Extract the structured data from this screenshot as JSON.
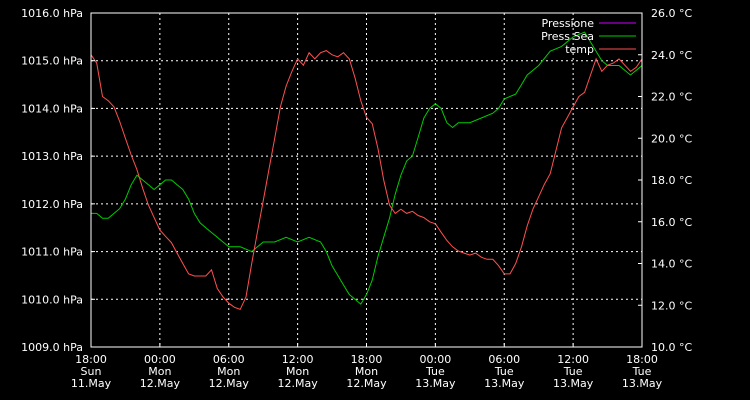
{
  "chart_data": {
    "type": "line",
    "title": "",
    "left_axis": {
      "range": [
        1009.0,
        1016.0
      ],
      "ticks": [
        1009.0,
        1010.0,
        1011.0,
        1012.0,
        1013.0,
        1014.0,
        1015.0,
        1016.0
      ],
      "tick_labels": [
        "1009.0 hPa",
        "1010.0 hPa",
        "1011.0 hPa",
        "1012.0 hPa",
        "1013.0 hPa",
        "1014.0 hPa",
        "1015.0 hPa",
        "1016.0 hPa"
      ]
    },
    "right_axis": {
      "range": [
        10.0,
        26.0
      ],
      "ticks": [
        10.0,
        12.0,
        14.0,
        16.0,
        18.0,
        20.0,
        22.0,
        24.0,
        26.0
      ],
      "tick_labels": [
        "10.0 °C",
        "12.0 °C",
        "14.0 °C",
        "16.0 °C",
        "18.0 °C",
        "20.0 °C",
        "22.0 °C",
        "24.0 °C",
        "26.0 °C"
      ]
    },
    "x_axis": {
      "range_hours": [
        0,
        48
      ],
      "ticks": [
        {
          "hours": 0,
          "time": "18:00",
          "day": "Sun",
          "date": "11.May"
        },
        {
          "hours": 6,
          "time": "00:00",
          "day": "Mon",
          "date": "12.May"
        },
        {
          "hours": 12,
          "time": "06:00",
          "day": "Mon",
          "date": "12.May"
        },
        {
          "hours": 18,
          "time": "12:00",
          "day": "Mon",
          "date": "12.May"
        },
        {
          "hours": 24,
          "time": "18:00",
          "day": "Mon",
          "date": "12.May"
        },
        {
          "hours": 30,
          "time": "00:00",
          "day": "Tue",
          "date": "13.May"
        },
        {
          "hours": 36,
          "time": "06:00",
          "day": "Tue",
          "date": "13.May"
        },
        {
          "hours": 42,
          "time": "12:00",
          "day": "Tue",
          "date": "13.May"
        },
        {
          "hours": 48,
          "time": "18:00",
          "day": "Tue",
          "date": "13.May"
        }
      ]
    },
    "grid": true,
    "legend_position": "top-right",
    "series": [
      {
        "name": "Pressione",
        "color": "#cc00ff",
        "axis": "left",
        "points": []
      },
      {
        "name": "Press Sea",
        "color": "#00cc00",
        "axis": "left",
        "points": [
          [
            0,
            1011.8
          ],
          [
            0.5,
            1011.8
          ],
          [
            1,
            1011.7
          ],
          [
            1.5,
            1011.7
          ],
          [
            2,
            1011.8
          ],
          [
            2.5,
            1011.9
          ],
          [
            3,
            1012.1
          ],
          [
            3.5,
            1012.4
          ],
          [
            4,
            1012.6
          ],
          [
            4.5,
            1012.5
          ],
          [
            5,
            1012.4
          ],
          [
            5.5,
            1012.3
          ],
          [
            6,
            1012.4
          ],
          [
            6.5,
            1012.5
          ],
          [
            7,
            1012.5
          ],
          [
            7.5,
            1012.4
          ],
          [
            8,
            1012.3
          ],
          [
            8.5,
            1012.1
          ],
          [
            9,
            1011.8
          ],
          [
            9.5,
            1011.6
          ],
          [
            10,
            1011.5
          ],
          [
            10.5,
            1011.4
          ],
          [
            11,
            1011.3
          ],
          [
            11.5,
            1011.2
          ],
          [
            12,
            1011.1
          ],
          [
            13,
            1011.1
          ],
          [
            14,
            1011.0
          ],
          [
            15,
            1011.2
          ],
          [
            16,
            1011.2
          ],
          [
            17,
            1011.3
          ],
          [
            18,
            1011.2
          ],
          [
            19,
            1011.3
          ],
          [
            20,
            1011.2
          ],
          [
            20.5,
            1011.0
          ],
          [
            21,
            1010.7
          ],
          [
            21.5,
            1010.5
          ],
          [
            22,
            1010.3
          ],
          [
            22.5,
            1010.1
          ],
          [
            23,
            1010.0
          ],
          [
            23.5,
            1009.9
          ],
          [
            24,
            1010.1
          ],
          [
            24.5,
            1010.4
          ],
          [
            25,
            1010.9
          ],
          [
            25.5,
            1011.3
          ],
          [
            26,
            1011.7
          ],
          [
            26.5,
            1012.2
          ],
          [
            27,
            1012.6
          ],
          [
            27.5,
            1012.9
          ],
          [
            28,
            1013.0
          ],
          [
            28.5,
            1013.4
          ],
          [
            29,
            1013.8
          ],
          [
            29.5,
            1014.0
          ],
          [
            30,
            1014.1
          ],
          [
            30.5,
            1014.0
          ],
          [
            31,
            1013.7
          ],
          [
            31.5,
            1013.6
          ],
          [
            32,
            1013.7
          ],
          [
            33,
            1013.7
          ],
          [
            34,
            1013.8
          ],
          [
            35,
            1013.9
          ],
          [
            35.5,
            1014.0
          ],
          [
            36,
            1014.2
          ],
          [
            37,
            1014.3
          ],
          [
            37.5,
            1014.5
          ],
          [
            38,
            1014.7
          ],
          [
            39,
            1014.9
          ],
          [
            40,
            1015.2
          ],
          [
            41,
            1015.3
          ],
          [
            42,
            1015.5
          ],
          [
            43,
            1015.6
          ],
          [
            43.5,
            1015.4
          ],
          [
            44,
            1015.2
          ],
          [
            44.5,
            1015.0
          ],
          [
            45,
            1014.9
          ],
          [
            46,
            1014.9
          ],
          [
            47,
            1014.7
          ],
          [
            47.5,
            1014.8
          ],
          [
            48,
            1014.9
          ]
        ]
      },
      {
        "name": "temp",
        "color": "#ff5050",
        "axis": "right",
        "points": [
          [
            0,
            24.0
          ],
          [
            0.5,
            23.6
          ],
          [
            1,
            22.0
          ],
          [
            1.5,
            21.8
          ],
          [
            2,
            21.5
          ],
          [
            2.5,
            20.8
          ],
          [
            3,
            20.0
          ],
          [
            3.5,
            19.2
          ],
          [
            4,
            18.5
          ],
          [
            4.5,
            17.6
          ],
          [
            5,
            16.8
          ],
          [
            5.5,
            16.2
          ],
          [
            6,
            15.6
          ],
          [
            6.5,
            15.3
          ],
          [
            7,
            15.0
          ],
          [
            7.5,
            14.5
          ],
          [
            8,
            14.0
          ],
          [
            8.5,
            13.5
          ],
          [
            9,
            13.4
          ],
          [
            9.5,
            13.4
          ],
          [
            10,
            13.4
          ],
          [
            10.5,
            13.7
          ],
          [
            11,
            12.8
          ],
          [
            11.5,
            12.4
          ],
          [
            12,
            12.1
          ],
          [
            12.5,
            11.9
          ],
          [
            13,
            11.8
          ],
          [
            13.5,
            12.4
          ],
          [
            14,
            14.0
          ],
          [
            14.5,
            15.5
          ],
          [
            15,
            17.0
          ],
          [
            15.5,
            18.5
          ],
          [
            16,
            20.0
          ],
          [
            16.5,
            21.5
          ],
          [
            17,
            22.5
          ],
          [
            17.5,
            23.2
          ],
          [
            18,
            23.8
          ],
          [
            18.5,
            23.5
          ],
          [
            19,
            24.1
          ],
          [
            19.5,
            23.8
          ],
          [
            20,
            24.1
          ],
          [
            20.5,
            24.2
          ],
          [
            21,
            24.0
          ],
          [
            21.5,
            23.9
          ],
          [
            22,
            24.1
          ],
          [
            22.5,
            23.8
          ],
          [
            23,
            22.9
          ],
          [
            23.5,
            21.8
          ],
          [
            24,
            21.0
          ],
          [
            24.5,
            20.7
          ],
          [
            25,
            19.5
          ],
          [
            25.5,
            18.0
          ],
          [
            26,
            16.8
          ],
          [
            26.5,
            16.4
          ],
          [
            27,
            16.6
          ],
          [
            27.5,
            16.4
          ],
          [
            28,
            16.5
          ],
          [
            28.5,
            16.3
          ],
          [
            29,
            16.2
          ],
          [
            29.5,
            16.0
          ],
          [
            30,
            15.9
          ],
          [
            30.5,
            15.5
          ],
          [
            31,
            15.1
          ],
          [
            31.5,
            14.8
          ],
          [
            32,
            14.6
          ],
          [
            32.5,
            14.5
          ],
          [
            33,
            14.4
          ],
          [
            33.5,
            14.5
          ],
          [
            34,
            14.3
          ],
          [
            34.5,
            14.2
          ],
          [
            35,
            14.2
          ],
          [
            35.5,
            13.9
          ],
          [
            36,
            13.5
          ],
          [
            36.5,
            13.5
          ],
          [
            37,
            14.0
          ],
          [
            37.5,
            14.8
          ],
          [
            38,
            15.8
          ],
          [
            38.5,
            16.6
          ],
          [
            39,
            17.2
          ],
          [
            39.5,
            17.8
          ],
          [
            40,
            18.3
          ],
          [
            40.5,
            19.4
          ],
          [
            41,
            20.5
          ],
          [
            41.5,
            21.0
          ],
          [
            42,
            21.5
          ],
          [
            42.5,
            22.0
          ],
          [
            43,
            22.2
          ],
          [
            43.5,
            23.0
          ],
          [
            44,
            23.8
          ],
          [
            44.5,
            23.2
          ],
          [
            45,
            23.5
          ],
          [
            45.5,
            23.6
          ],
          [
            46,
            23.8
          ],
          [
            46.5,
            23.5
          ],
          [
            47,
            23.2
          ],
          [
            47.5,
            23.4
          ],
          [
            48,
            23.8
          ]
        ]
      }
    ]
  },
  "colors": {
    "background": "#000000",
    "foreground": "#ffffff",
    "grid": "#ffffff"
  }
}
